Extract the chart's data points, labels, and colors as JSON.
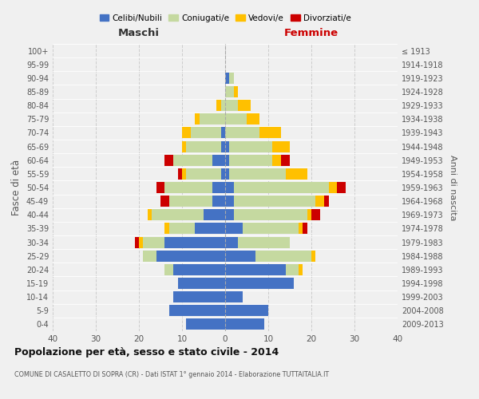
{
  "age_groups": [
    "100+",
    "95-99",
    "90-94",
    "85-89",
    "80-84",
    "75-79",
    "70-74",
    "65-69",
    "60-64",
    "55-59",
    "50-54",
    "45-49",
    "40-44",
    "35-39",
    "30-34",
    "25-29",
    "20-24",
    "15-19",
    "10-14",
    "5-9",
    "0-4"
  ],
  "birth_years": [
    "≤ 1913",
    "1914-1918",
    "1919-1923",
    "1924-1928",
    "1929-1933",
    "1934-1938",
    "1939-1943",
    "1944-1948",
    "1949-1953",
    "1954-1958",
    "1959-1963",
    "1964-1968",
    "1969-1973",
    "1974-1978",
    "1979-1983",
    "1984-1988",
    "1989-1993",
    "1994-1998",
    "1999-2003",
    "2004-2008",
    "2009-2013"
  ],
  "maschi": {
    "celibi": [
      0,
      0,
      0,
      0,
      0,
      0,
      1,
      1,
      3,
      1,
      3,
      3,
      5,
      7,
      14,
      16,
      12,
      11,
      12,
      13,
      9
    ],
    "coniugati": [
      0,
      0,
      0,
      0,
      1,
      6,
      7,
      8,
      9,
      8,
      11,
      10,
      12,
      6,
      5,
      3,
      2,
      0,
      0,
      0,
      0
    ],
    "vedovi": [
      0,
      0,
      0,
      0,
      1,
      1,
      2,
      1,
      0,
      1,
      0,
      0,
      1,
      1,
      1,
      0,
      0,
      0,
      0,
      0,
      0
    ],
    "divorziati": [
      0,
      0,
      0,
      0,
      0,
      0,
      0,
      0,
      2,
      1,
      2,
      2,
      0,
      0,
      1,
      0,
      0,
      0,
      0,
      0,
      0
    ]
  },
  "femmine": {
    "nubili": [
      0,
      0,
      1,
      0,
      0,
      0,
      0,
      1,
      1,
      1,
      2,
      2,
      2,
      4,
      3,
      7,
      14,
      16,
      4,
      10,
      9
    ],
    "coniugate": [
      0,
      0,
      1,
      2,
      3,
      5,
      8,
      10,
      10,
      13,
      22,
      19,
      17,
      13,
      12,
      13,
      3,
      0,
      0,
      0,
      0
    ],
    "vedove": [
      0,
      0,
      0,
      1,
      3,
      3,
      5,
      4,
      2,
      5,
      2,
      2,
      1,
      1,
      0,
      1,
      1,
      0,
      0,
      0,
      0
    ],
    "divorziate": [
      0,
      0,
      0,
      0,
      0,
      0,
      0,
      0,
      2,
      0,
      2,
      1,
      2,
      1,
      0,
      0,
      0,
      0,
      0,
      0,
      0
    ]
  },
  "colors": {
    "celibi": "#4472c4",
    "coniugati": "#c5d9a0",
    "vedovi": "#ffc000",
    "divorziati": "#cc0000"
  },
  "xlim": 40,
  "title": "Popolazione per età, sesso e stato civile - 2014",
  "subtitle": "COMUNE DI CASALETTO DI SOPRA (CR) - Dati ISTAT 1° gennaio 2014 - Elaborazione TUTTAITALIA.IT",
  "ylabel_left": "Fasce di età",
  "ylabel_right": "Anni di nascita",
  "xlabel_maschi": "Maschi",
  "xlabel_femmine": "Femmine",
  "legend_labels": [
    "Celibi/Nubili",
    "Coniugati/e",
    "Vedovi/e",
    "Divorziati/e"
  ],
  "bg_color": "#f0f0f0"
}
